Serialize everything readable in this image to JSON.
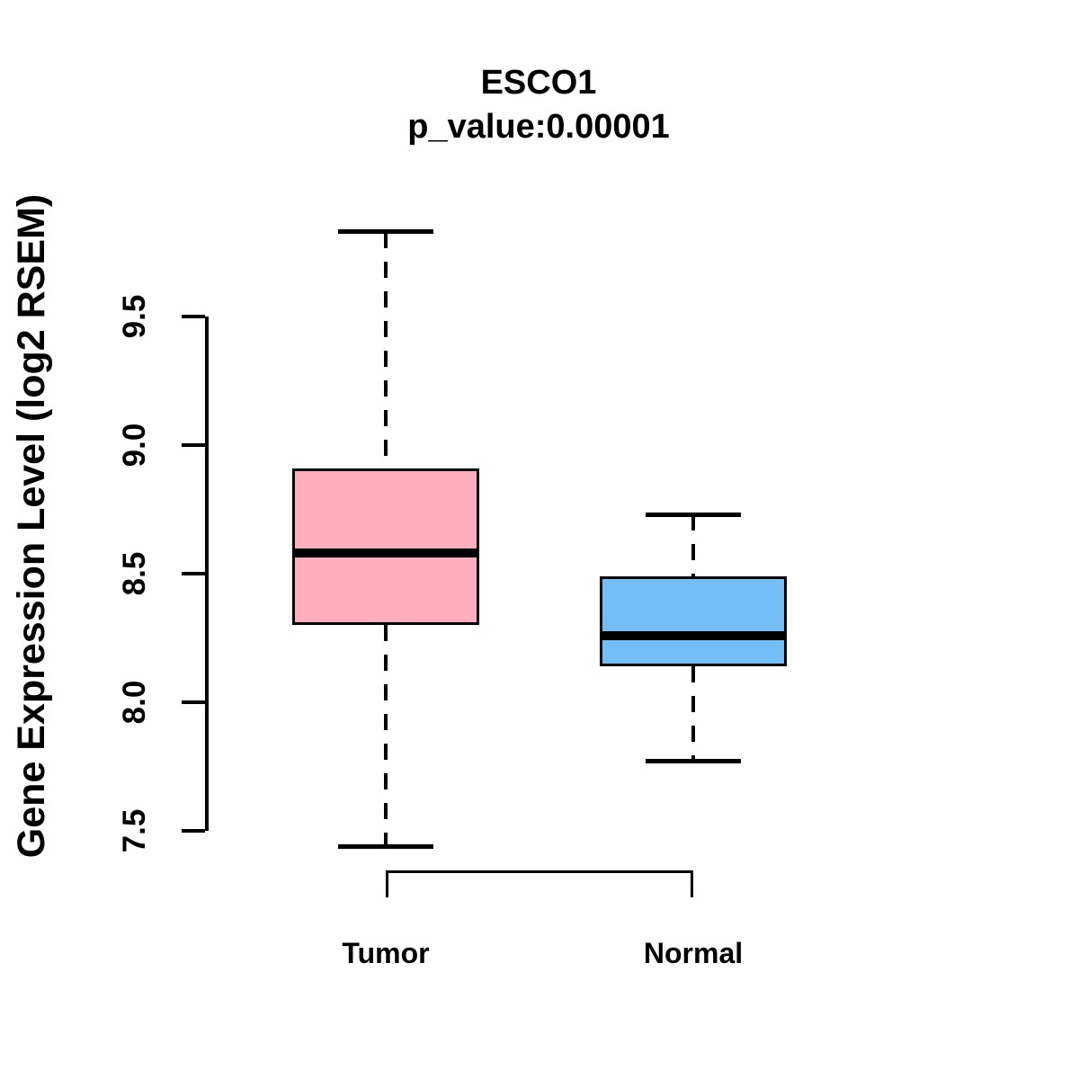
{
  "chart_data": {
    "type": "boxplot",
    "title": "ESCO1",
    "subtitle": "p_value:0.00001",
    "ylabel": "Gene Expression Level (log2 RSEM)",
    "xlabel": "",
    "ytick_values": [
      7.5,
      8.0,
      8.5,
      9.0,
      9.5
    ],
    "ytick_labels": [
      "7.5",
      "8.0",
      "8.5",
      "9.0",
      "9.5"
    ],
    "axis_range": [
      7.5,
      9.5
    ],
    "grid": "off",
    "legend": "none",
    "categories": [
      "Tumor",
      "Normal"
    ],
    "series": [
      {
        "name": "Tumor",
        "whisker_low": 7.44,
        "q1": 8.3,
        "median": 8.58,
        "q3": 8.91,
        "whisker_high": 9.83,
        "fill_color": "#FFAEC0"
      },
      {
        "name": "Normal",
        "whisker_low": 7.77,
        "q1": 8.14,
        "median": 8.26,
        "q3": 8.49,
        "whisker_high": 8.73,
        "fill_color": "#74BEF5"
      }
    ],
    "stroke_color": "#000000",
    "comparison_bracket": {
      "from": "Tumor",
      "to": "Normal"
    }
  }
}
